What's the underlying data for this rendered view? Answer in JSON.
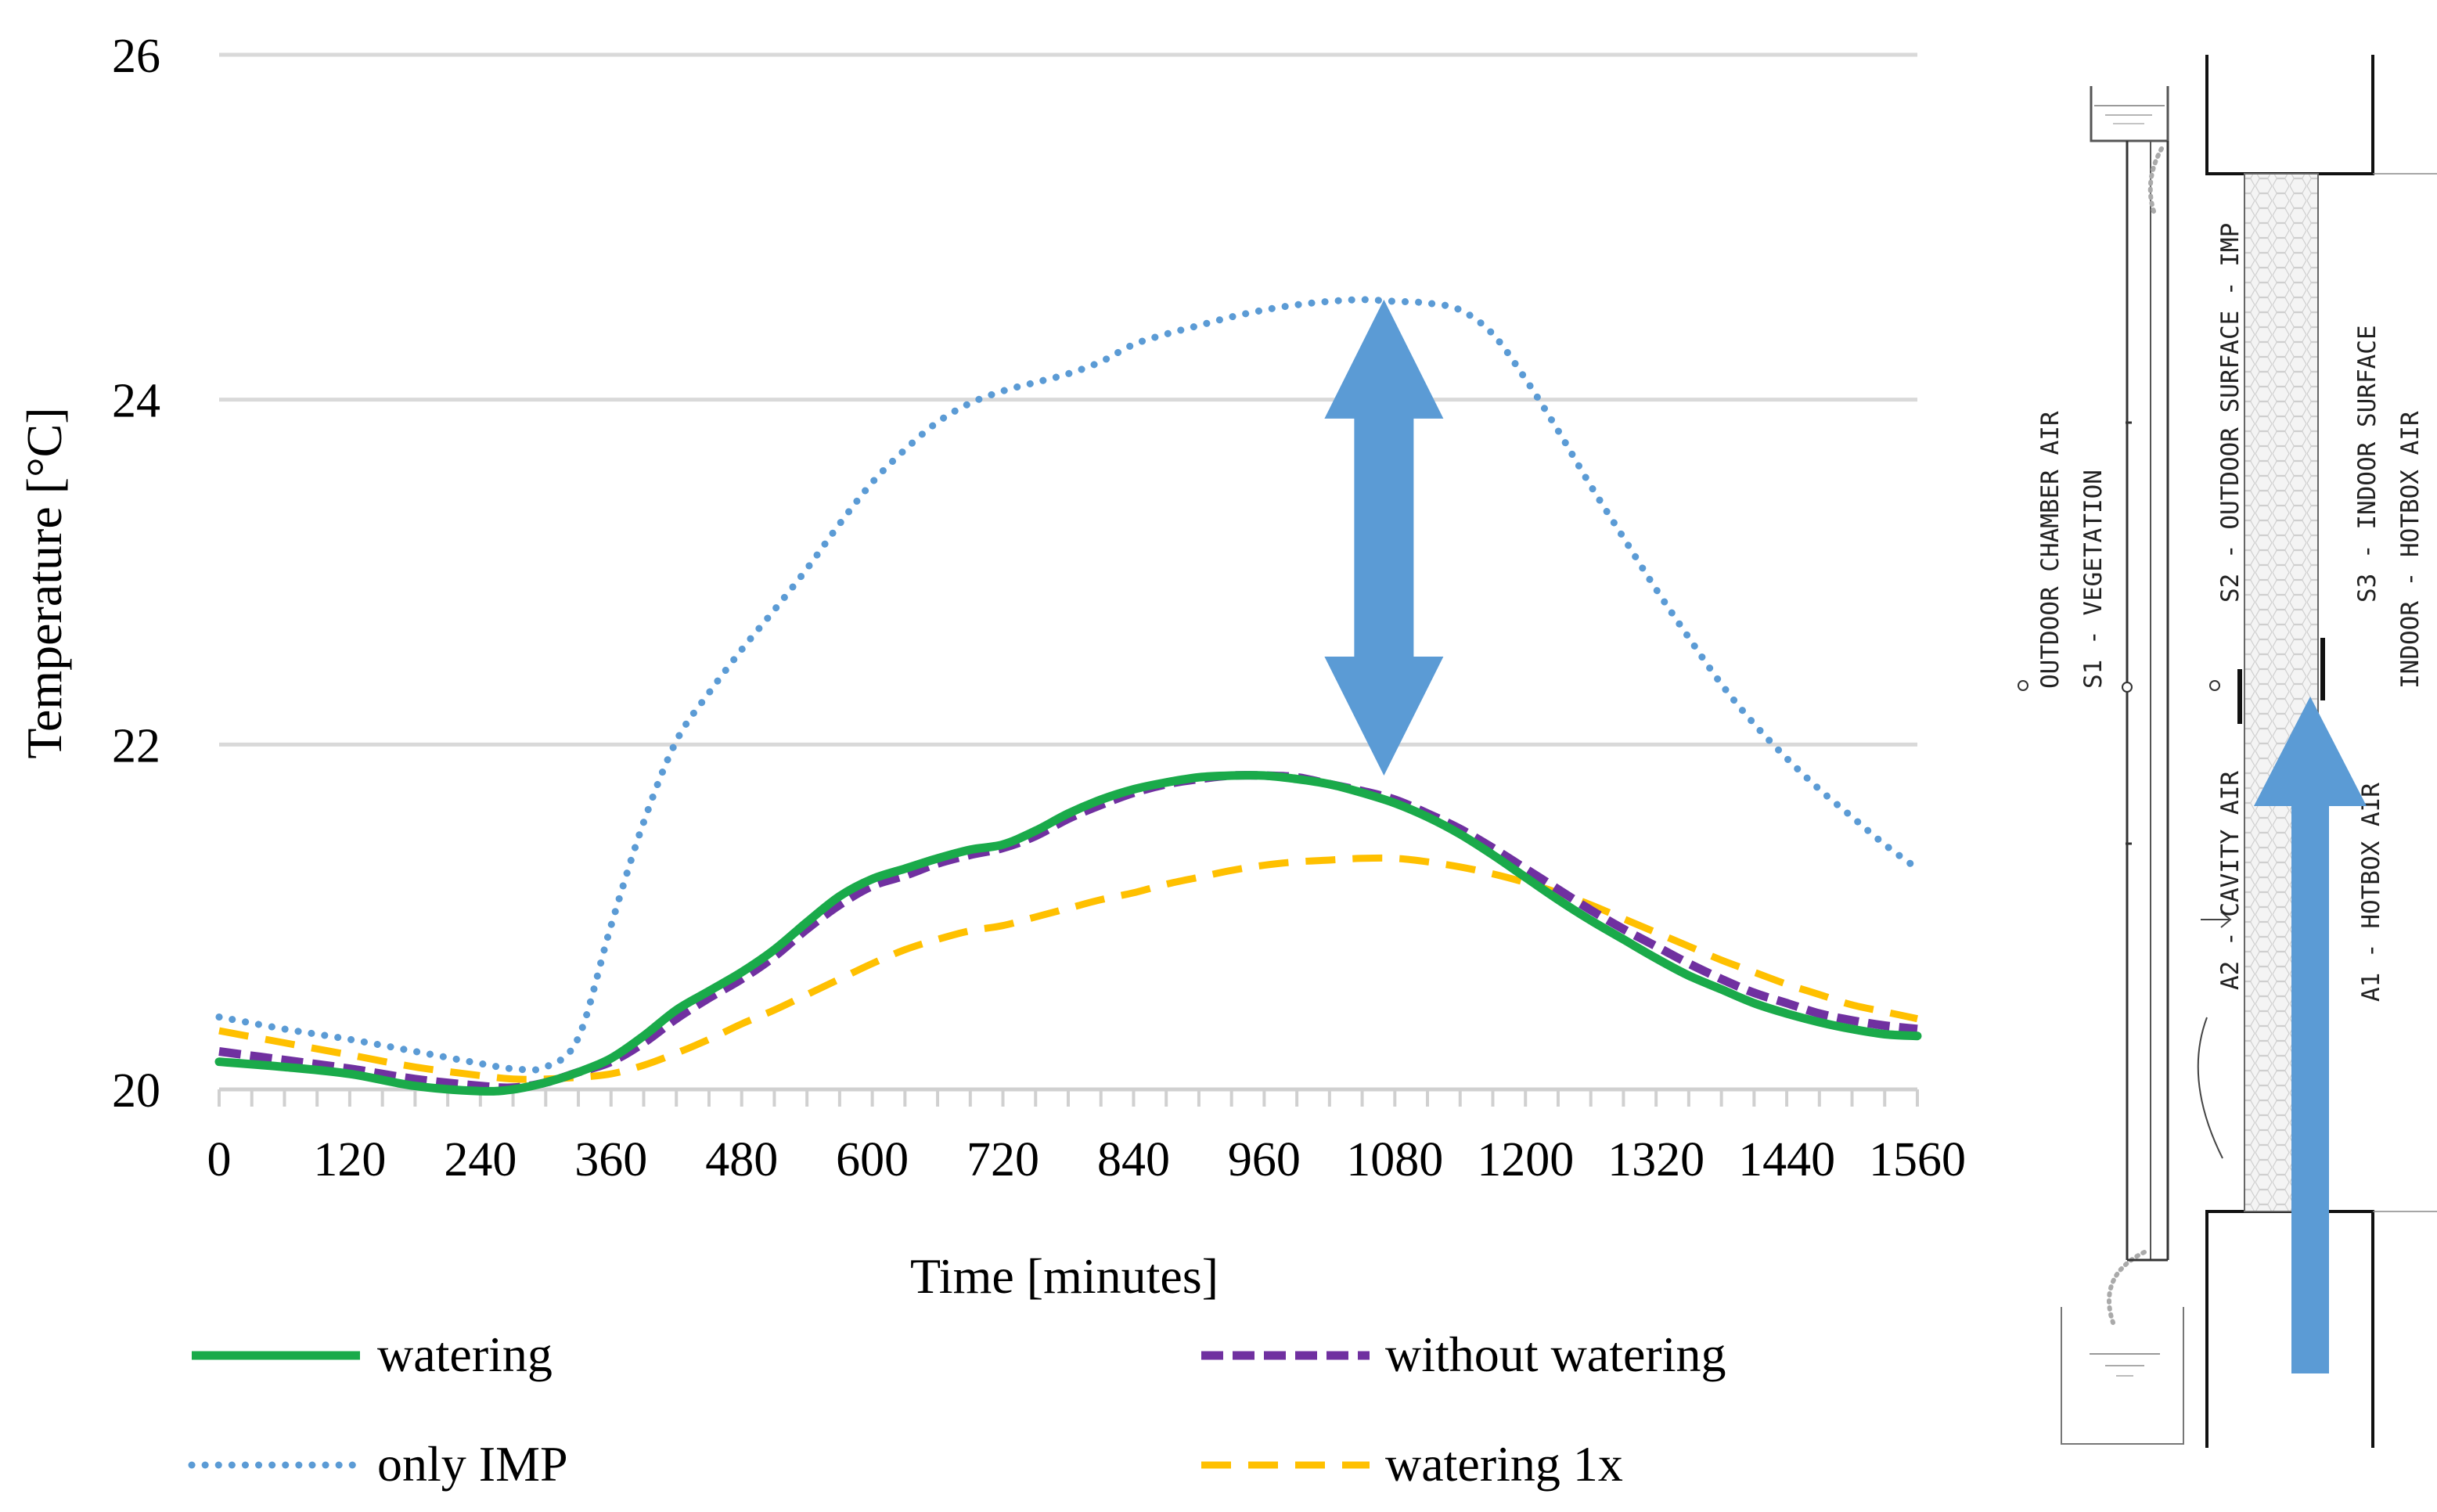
{
  "colors": {
    "watering": "#1aaa4a",
    "without_watering": "#7030a0",
    "only_imp": "#5b9bd5",
    "watering_1x": "#ffc000",
    "arrow": "#5b9bd5",
    "grid": "#d9d9d9"
  },
  "chart_data": {
    "type": "line",
    "title": "",
    "xlabel": "Time [minutes]",
    "ylabel": "Temperature [°C]",
    "xlim": [
      0,
      1560
    ],
    "ylim": [
      20,
      26
    ],
    "x_ticks": [
      0,
      120,
      240,
      360,
      480,
      600,
      720,
      840,
      960,
      1080,
      1200,
      1320,
      1440,
      1560
    ],
    "y_ticks": [
      20,
      22,
      24,
      26
    ],
    "grid": true,
    "legend_position": "bottom",
    "series": [
      {
        "key": "watering",
        "name": "watering",
        "style": "solid",
        "x": [
          0,
          60,
          120,
          180,
          240,
          270,
          300,
          330,
          360,
          390,
          420,
          450,
          480,
          510,
          540,
          570,
          600,
          630,
          660,
          690,
          720,
          750,
          780,
          810,
          840,
          870,
          900,
          930,
          960,
          990,
          1020,
          1050,
          1080,
          1110,
          1140,
          1170,
          1200,
          1230,
          1260,
          1290,
          1320,
          1350,
          1380,
          1410,
          1440,
          1470,
          1500,
          1530,
          1560
        ],
        "y": [
          20.16,
          20.13,
          20.09,
          20.02,
          19.99,
          20.0,
          20.04,
          20.1,
          20.18,
          20.31,
          20.46,
          20.57,
          20.68,
          20.81,
          20.97,
          21.12,
          21.22,
          21.28,
          21.34,
          21.39,
          21.42,
          21.5,
          21.6,
          21.68,
          21.74,
          21.78,
          21.81,
          21.82,
          21.82,
          21.8,
          21.77,
          21.72,
          21.66,
          21.58,
          21.48,
          21.36,
          21.23,
          21.1,
          20.98,
          20.87,
          20.76,
          20.66,
          20.58,
          20.5,
          20.44,
          20.39,
          20.35,
          20.32,
          20.31
        ]
      },
      {
        "key": "without_watering",
        "name": "without watering",
        "style": "dashed",
        "x": [
          0,
          60,
          120,
          180,
          240,
          270,
          300,
          330,
          360,
          390,
          420,
          450,
          480,
          510,
          540,
          570,
          600,
          630,
          660,
          690,
          720,
          750,
          780,
          810,
          840,
          870,
          900,
          930,
          960,
          990,
          1020,
          1050,
          1080,
          1110,
          1140,
          1170,
          1200,
          1230,
          1260,
          1290,
          1320,
          1350,
          1380,
          1410,
          1440,
          1470,
          1500,
          1530,
          1560
        ],
        "y": [
          20.22,
          20.17,
          20.12,
          20.06,
          20.02,
          20.01,
          20.04,
          20.1,
          20.16,
          20.27,
          20.41,
          20.53,
          20.64,
          20.77,
          20.93,
          21.07,
          21.18,
          21.24,
          21.31,
          21.36,
          21.4,
          21.47,
          21.57,
          21.65,
          21.72,
          21.77,
          21.8,
          21.82,
          21.82,
          21.81,
          21.77,
          21.73,
          21.68,
          21.6,
          21.51,
          21.4,
          21.28,
          21.16,
          21.04,
          20.93,
          20.83,
          20.73,
          20.64,
          20.56,
          20.5,
          20.44,
          20.4,
          20.37,
          20.35
        ]
      },
      {
        "key": "only_imp",
        "name": "only IMP",
        "style": "dotted",
        "x": [
          0,
          60,
          120,
          180,
          240,
          270,
          300,
          330,
          360,
          390,
          420,
          450,
          480,
          510,
          540,
          570,
          600,
          630,
          660,
          690,
          720,
          750,
          780,
          810,
          840,
          870,
          900,
          930,
          960,
          990,
          1020,
          1050,
          1080,
          1110,
          1140,
          1170,
          1200,
          1230,
          1260,
          1290,
          1320,
          1350,
          1380,
          1410,
          1440,
          1470,
          1500,
          1530,
          1560
        ],
        "y": [
          20.42,
          20.35,
          20.29,
          20.22,
          20.15,
          20.12,
          20.13,
          20.3,
          20.95,
          21.55,
          22.02,
          22.3,
          22.55,
          22.78,
          23.02,
          23.28,
          23.52,
          23.71,
          23.87,
          23.98,
          24.05,
          24.1,
          24.15,
          24.22,
          24.32,
          24.38,
          24.43,
          24.48,
          24.52,
          24.55,
          24.57,
          24.58,
          24.57,
          24.56,
          24.52,
          24.38,
          24.12,
          23.82,
          23.5,
          23.2,
          22.9,
          22.62,
          22.35,
          22.12,
          21.92,
          21.74,
          21.58,
          21.42,
          21.28
        ]
      },
      {
        "key": "watering_1x",
        "name": "watering 1x",
        "style": "long-dash",
        "x": [
          0,
          60,
          120,
          180,
          240,
          270,
          300,
          330,
          360,
          390,
          420,
          450,
          480,
          510,
          540,
          570,
          600,
          630,
          660,
          690,
          720,
          750,
          780,
          810,
          840,
          870,
          900,
          930,
          960,
          990,
          1020,
          1050,
          1080,
          1110,
          1140,
          1170,
          1200,
          1230,
          1260,
          1290,
          1320,
          1350,
          1380,
          1410,
          1440,
          1470,
          1500,
          1530,
          1560
        ],
        "y": [
          20.34,
          20.27,
          20.2,
          20.13,
          20.08,
          20.06,
          20.06,
          20.07,
          20.09,
          20.14,
          20.21,
          20.29,
          20.38,
          20.46,
          20.55,
          20.64,
          20.73,
          20.81,
          20.87,
          20.92,
          20.95,
          21.0,
          21.05,
          21.1,
          21.14,
          21.19,
          21.23,
          21.27,
          21.3,
          21.32,
          21.33,
          21.34,
          21.34,
          21.32,
          21.29,
          21.25,
          21.2,
          21.14,
          21.07,
          20.99,
          20.91,
          20.83,
          20.75,
          20.68,
          20.61,
          20.55,
          20.49,
          20.45,
          20.41
        ]
      }
    ],
    "annotations": [
      {
        "type": "double-arrow",
        "x": 1070,
        "y_from": 21.82,
        "y_to": 24.58
      }
    ]
  },
  "diagram": {
    "labels": [
      "OUTDOOR CHAMBER AIR",
      "S1 - VEGETATION",
      "A2 - CAVITY AIR",
      "S2 - OUTDOOR SURFACE - IMP",
      "A1 - HOTBOX AIR",
      "S3 - INDOOR SURFACE",
      "INDOOR - HOTBOX AIR"
    ]
  }
}
